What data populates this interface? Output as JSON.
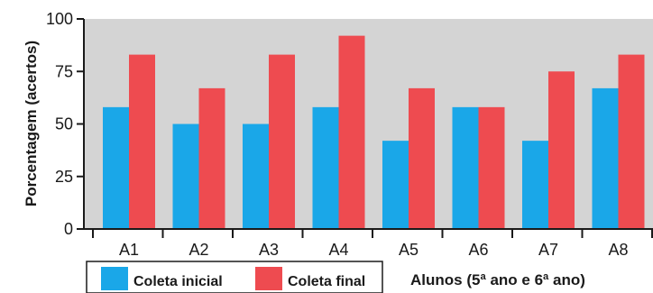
{
  "chart_data": {
    "type": "bar",
    "categories": [
      "A1",
      "A2",
      "A3",
      "A4",
      "A5",
      "A6",
      "A7",
      "A8"
    ],
    "series": [
      {
        "name": "Coleta inicial",
        "color": "#1aa7e8",
        "values": [
          58,
          50,
          50,
          58,
          42,
          58,
          42,
          67
        ]
      },
      {
        "name": "Coleta final",
        "color": "#ee4b50",
        "values": [
          83,
          67,
          83,
          92,
          67,
          58,
          75,
          83
        ]
      }
    ],
    "ylabel": "Porcentagem (acertos)",
    "xlabel": "Alunos (5ª ano e 6ª ano)",
    "ylim": [
      0,
      100
    ],
    "yticks": [
      0,
      25,
      50,
      75,
      100
    ],
    "plot_background": "#d4d4d4",
    "legend_position": "bottom-left",
    "grid": false
  }
}
